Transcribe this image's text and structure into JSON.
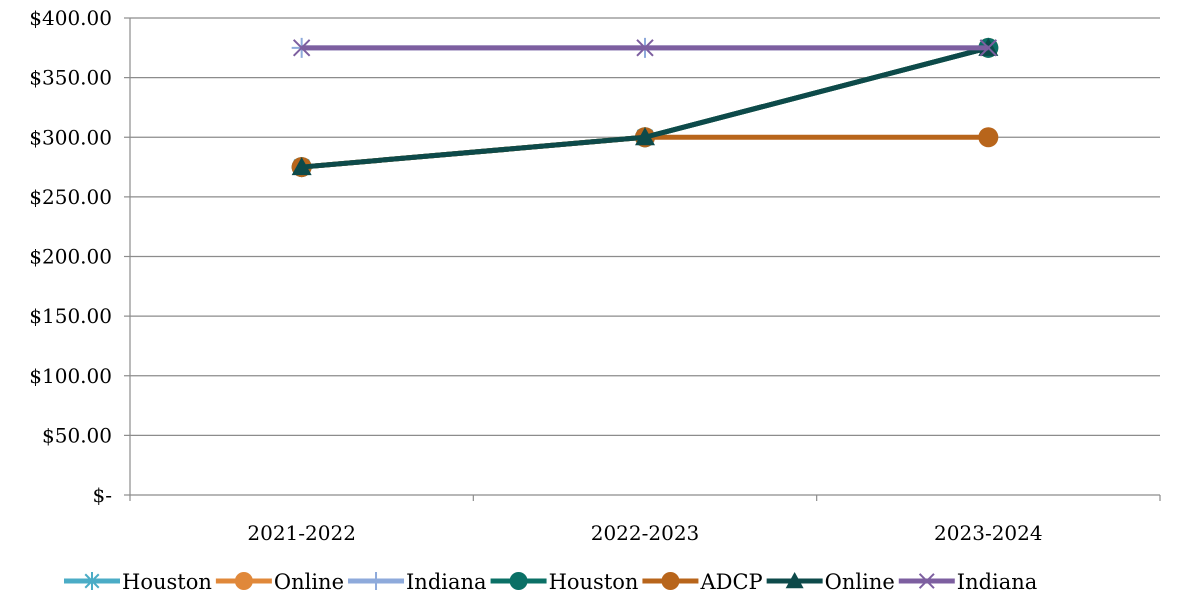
{
  "chart_data": {
    "type": "line",
    "categories": [
      "2021-2022",
      "2022-2023",
      "2023-2024"
    ],
    "ylim": [
      0,
      400
    ],
    "yticks": [
      0,
      50,
      100,
      150,
      200,
      250,
      300,
      350,
      400
    ],
    "ytick_labels": [
      "$-",
      "$50.00",
      "$100.00",
      "$150.00",
      "$200.00",
      "$250.00",
      "$300.00",
      "$350.00",
      "$400.00"
    ],
    "grid": true,
    "legend_position": "bottom",
    "series": [
      {
        "name": "Houston",
        "values": [
          275,
          300,
          375
        ],
        "color": "#4bacc6",
        "marker": "asterisk"
      },
      {
        "name": "Online",
        "values": [
          275,
          300,
          375
        ],
        "color": "#e0883a",
        "marker": "circle"
      },
      {
        "name": "Indiana",
        "values": [
          375,
          375,
          375
        ],
        "color": "#8eaadb",
        "marker": "plus"
      },
      {
        "name": "Houston",
        "values": [
          275,
          300,
          375
        ],
        "color": "#0b7066",
        "marker": "circle"
      },
      {
        "name": "ADCP",
        "values": [
          275,
          300,
          300
        ],
        "color": "#b8651b",
        "marker": "circle"
      },
      {
        "name": "Online",
        "values": [
          275,
          300,
          375
        ],
        "color": "#0d4a4a",
        "marker": "triangle"
      },
      {
        "name": "Indiana",
        "values": [
          375,
          375,
          375
        ],
        "color": "#7d5fa0",
        "marker": "x"
      }
    ]
  }
}
